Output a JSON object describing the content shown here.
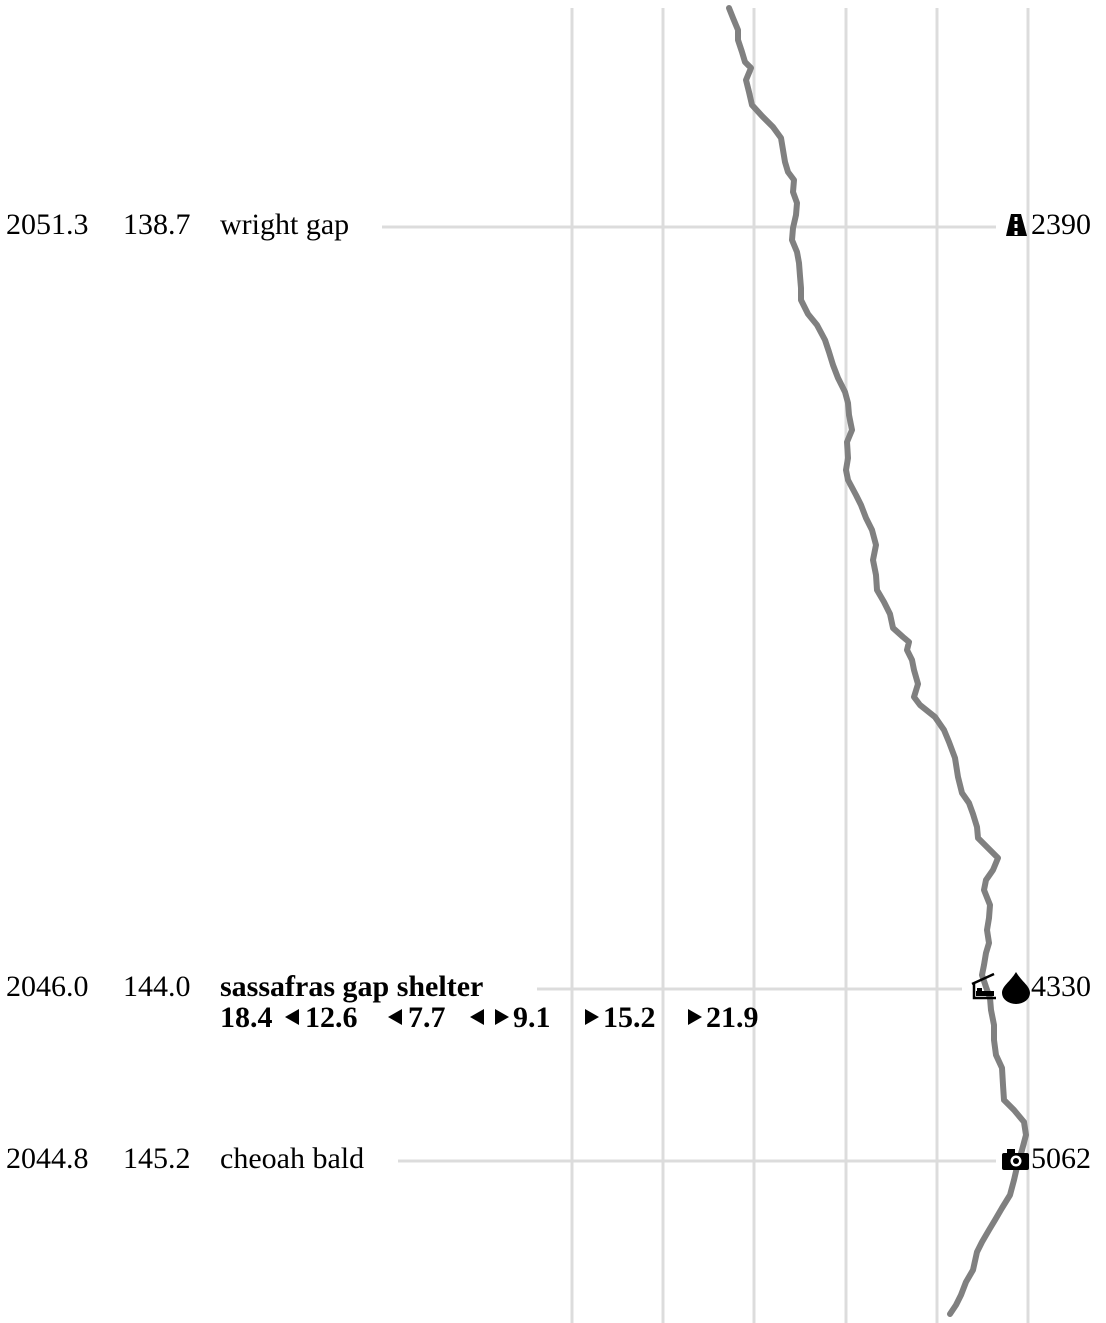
{
  "waypoints": [
    {
      "nobo": "2051.3",
      "sobo": "138.7",
      "name": "wright gap",
      "elevation": "2390",
      "icons": [
        "road-icon"
      ],
      "is_shelter": false
    },
    {
      "nobo": "2046.0",
      "sobo": "144.0",
      "name": "sassafras gap shelter",
      "elevation": "4330",
      "icons": [
        "shelter-icon",
        "water-icon"
      ],
      "is_shelter": true,
      "distances": {
        "south": [
          "18.4",
          "12.6",
          "7.7"
        ],
        "north": [
          "9.1",
          "15.2",
          "21.9"
        ]
      }
    },
    {
      "nobo": "2044.8",
      "sobo": "145.2",
      "name": "cheoah bald",
      "elevation": "5062",
      "icons": [
        "camera-icon"
      ],
      "is_shelter": false
    }
  ],
  "colors": {
    "profile_line": "#808080",
    "grid_line": "#dcdcdc",
    "text": "#000000",
    "arrow_highlight": "#fffbe6"
  }
}
